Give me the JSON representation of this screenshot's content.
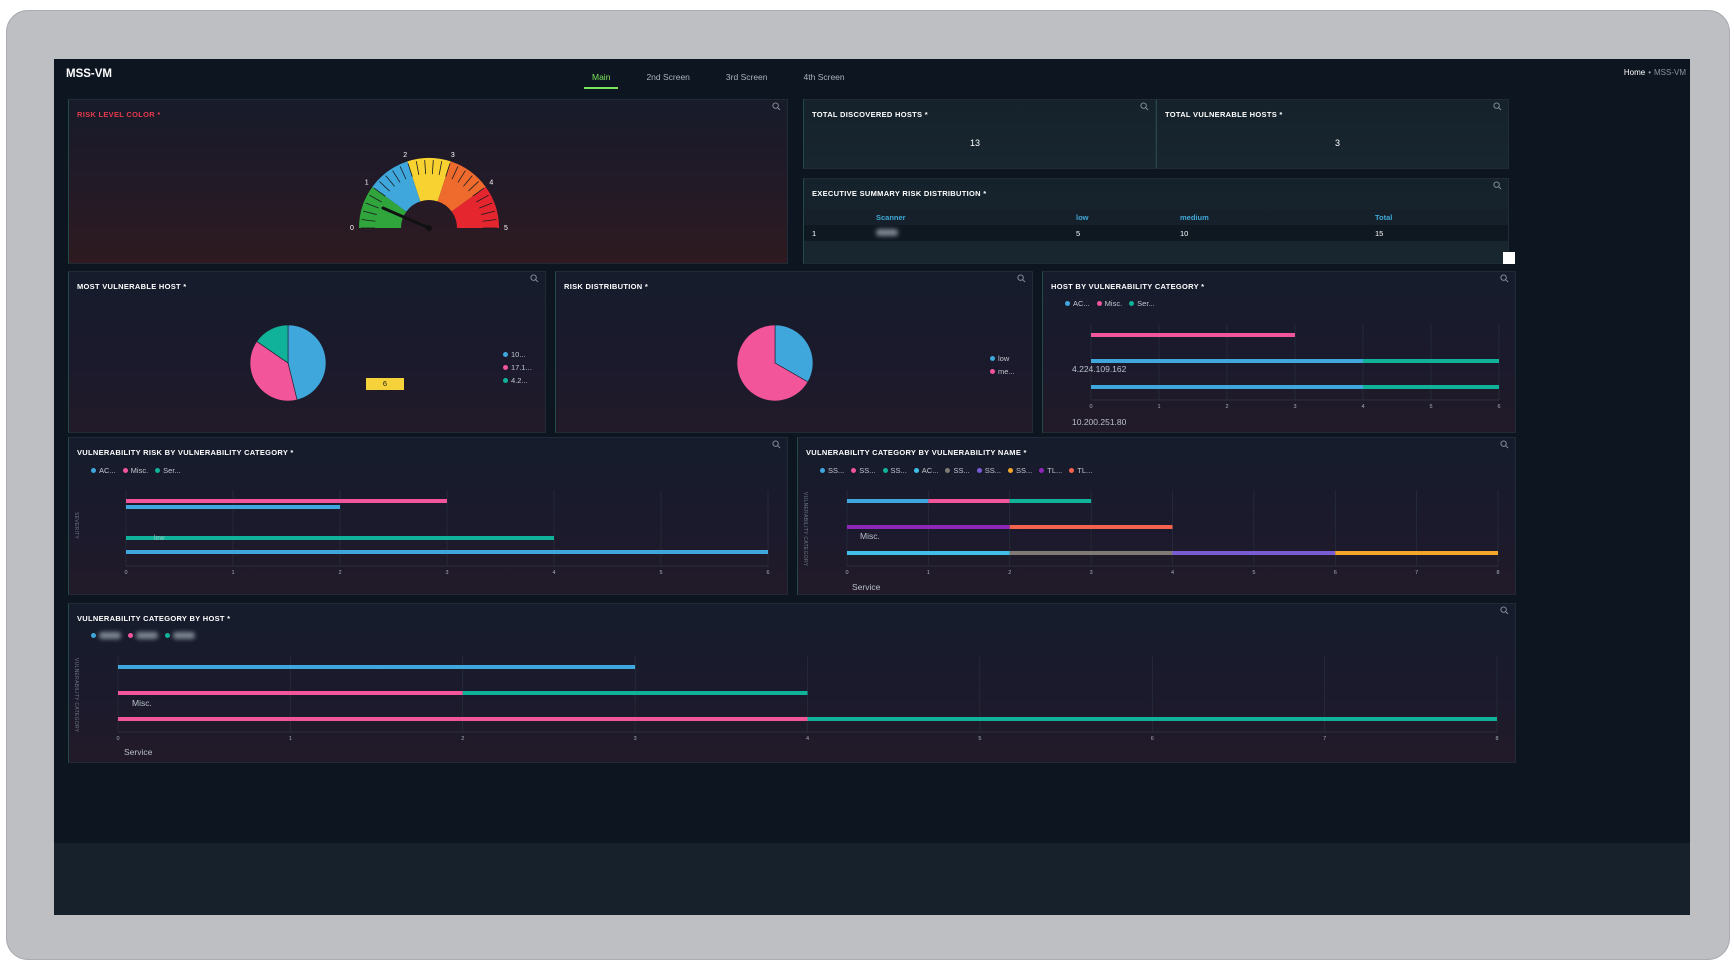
{
  "app": {
    "title": "MSS-VM"
  },
  "tabs": [
    "Main",
    "2nd Screen",
    "3rd Screen",
    "4th Screen"
  ],
  "breadcrumb": {
    "home": "Home",
    "separator": "•",
    "current": "MSS-VM"
  },
  "colors": {
    "blue": "#3fa7dc",
    "pink": "#f2559a",
    "teal": "#10b39a",
    "green": "#2fa53c",
    "yellow": "#f7d231",
    "orange": "#ee6a2d",
    "red": "#e6262f",
    "purple": "#8e27b8",
    "coral": "#f3624c",
    "gray": "#7f7b74",
    "lavender": "#7a5bd6",
    "amber": "#f3a62a",
    "cyan": "#40c0e8",
    "accent": "#7be35c"
  },
  "panels": {
    "risk_level": {
      "title": "RISK LEVEL COLOR *"
    },
    "total_discovered": {
      "title": "TOTAL DISCOVERED HOSTS *",
      "value": "13"
    },
    "total_vulnerable": {
      "title": "TOTAL VULNERABLE HOSTS *",
      "value": "3"
    },
    "exec_summary": {
      "title": "EXECUTIVE SUMMARY RISK DISTRIBUTION *"
    },
    "most_vulnerable_host": {
      "title": "MOST VULNERABLE HOST *",
      "chip": "6"
    },
    "risk_distribution": {
      "title": "RISK DISTRIBUTION *"
    },
    "host_by_category": {
      "title": "HOST BY VULNERABILITY CATEGORY *"
    },
    "risk_by_category": {
      "title": "VULNERABILITY RISK BY VULNERABILITY CATEGORY *"
    },
    "category_by_name": {
      "title": "VULNERABILITY CATEGORY BY VULNERABILITY NAME *"
    },
    "category_by_host": {
      "title": "VULNERABILITY CATEGORY BY HOST *"
    }
  },
  "chart_data": [
    {
      "id": "risk_gauge",
      "type": "gauge",
      "ticks": [
        "0",
        "1",
        "2",
        "3",
        "4",
        "5"
      ],
      "bands": [
        "green",
        "blue",
        "yellow",
        "orange",
        "red"
      ],
      "value": 0.6
    },
    {
      "id": "exec_table",
      "type": "table",
      "columns": [
        "",
        "Scanner",
        "low",
        "medium",
        "Total"
      ],
      "rows": [
        [
          "1",
          "",
          "5",
          "10",
          "15"
        ]
      ]
    },
    {
      "id": "most_vulnerable_host",
      "type": "pie",
      "labels": [
        "10...",
        "17.1...",
        "4.2..."
      ],
      "colors": [
        "#3fa7dc",
        "#f2559a",
        "#10b39a"
      ],
      "values": [
        6,
        5,
        2
      ]
    },
    {
      "id": "risk_distribution",
      "type": "pie",
      "labels": [
        "low",
        "me..."
      ],
      "colors": [
        "#3fa7dc",
        "#f2559a"
      ],
      "values": [
        5,
        10
      ]
    },
    {
      "id": "host_by_vulnerability_category",
      "type": "bar",
      "orientation": "horizontal",
      "stacked": true,
      "legend": [
        "AC...",
        "Misc.",
        "Ser..."
      ],
      "legend_colors": [
        "#3fa7dc",
        "#f2559a",
        "#10b39a"
      ],
      "categories": [
        "",
        "4.224.109.162",
        "10.200.251.80"
      ],
      "category_labels_visible": [
        "",
        "4.224.109.162",
        "10.200.251.80"
      ],
      "bars": [
        {
          "row": 0,
          "segments": [
            {
              "color": "#f2559a",
              "value": 3
            }
          ]
        },
        {
          "row": 1,
          "segments": [
            {
              "color": "#3fa7dc",
              "value": 4
            },
            {
              "color": "#10b39a",
              "value": 2
            }
          ]
        },
        {
          "row": 2,
          "segments": [
            {
              "color": "#3fa7dc",
              "value": 4
            },
            {
              "color": "#10b39a",
              "value": 2
            }
          ]
        }
      ],
      "x_ticks": [
        "0",
        "1",
        "2",
        "3",
        "4",
        "5",
        "6"
      ],
      "xlim": [
        0,
        6
      ]
    },
    {
      "id": "vulnerability_risk_by_category",
      "type": "bar",
      "orientation": "horizontal",
      "legend": [
        "AC...",
        "Misc.",
        "Ser..."
      ],
      "legend_colors": [
        "#3fa7dc",
        "#f2559a",
        "#10b39a"
      ],
      "y_axis_label": "SEVERITY",
      "bars": [
        {
          "color": "#f2559a",
          "value": 3
        },
        {
          "color": "#3fa7dc",
          "value": 2
        },
        {
          "color": "#10b39a",
          "value": 4,
          "label": "low"
        },
        {
          "color": "#3fa7dc",
          "value": 6
        }
      ],
      "x_ticks": [
        "0",
        "1",
        "2",
        "3",
        "4",
        "5",
        "6"
      ],
      "xlim": [
        0,
        6
      ]
    },
    {
      "id": "category_by_vulnerability_name",
      "type": "bar",
      "orientation": "horizontal",
      "stacked": true,
      "legend": [
        "SS...",
        "SS...",
        "SS...",
        "AC...",
        "SS...",
        "SS...",
        "SS...",
        "TL...",
        "TL..."
      ],
      "legend_colors": [
        "#3fa7dc",
        "#f2559a",
        "#10b39a",
        "#40c0e8",
        "#7f7b74",
        "#7a5bd6",
        "#f3a62a",
        "#8e27b8",
        "#f3624c"
      ],
      "y_axis_label": "VULNERABILITY CATEGORY",
      "categories": [
        "",
        "Misc.",
        "Service"
      ],
      "bars": [
        {
          "row": 0,
          "segments": [
            {
              "color": "#3fa7dc",
              "value": 1
            },
            {
              "color": "#f2559a",
              "value": 1
            },
            {
              "color": "#10b39a",
              "value": 1
            }
          ]
        },
        {
          "row": 1,
          "segments": [
            {
              "color": "#8e27b8",
              "value": 2
            },
            {
              "color": "#f3624c",
              "value": 2
            }
          ]
        },
        {
          "row": 2,
          "segments": [
            {
              "color": "#40c0e8",
              "value": 2
            },
            {
              "color": "#7f7b74",
              "value": 2
            },
            {
              "color": "#7a5bd6",
              "value": 2
            },
            {
              "color": "#f3a62a",
              "value": 2
            }
          ]
        }
      ],
      "x_ticks": [
        "0",
        "1",
        "2",
        "3",
        "4",
        "5",
        "6",
        "7",
        "8"
      ],
      "xlim": [
        0,
        8
      ]
    },
    {
      "id": "category_by_host",
      "type": "bar",
      "orientation": "horizontal",
      "stacked": true,
      "legend_colors": [
        "#3fa7dc",
        "#f2559a",
        "#10b39a"
      ],
      "y_axis_label": "VULNERABILITY CATEGORY",
      "categories": [
        "",
        "Misc.",
        "Service"
      ],
      "bars": [
        {
          "row": 0,
          "segments": [
            {
              "color": "#3fa7dc",
              "value": 3
            }
          ]
        },
        {
          "row": 1,
          "segments": [
            {
              "color": "#f2559a",
              "value": 2
            },
            {
              "color": "#10b39a",
              "value": 2
            }
          ]
        },
        {
          "row": 2,
          "segments": [
            {
              "color": "#f2559a",
              "value": 4
            },
            {
              "color": "#10b39a",
              "value": 4
            }
          ]
        }
      ],
      "x_ticks": [
        "0",
        "1",
        "2",
        "3",
        "4",
        "5",
        "6",
        "7",
        "8"
      ],
      "xlim": [
        0,
        8
      ]
    }
  ]
}
